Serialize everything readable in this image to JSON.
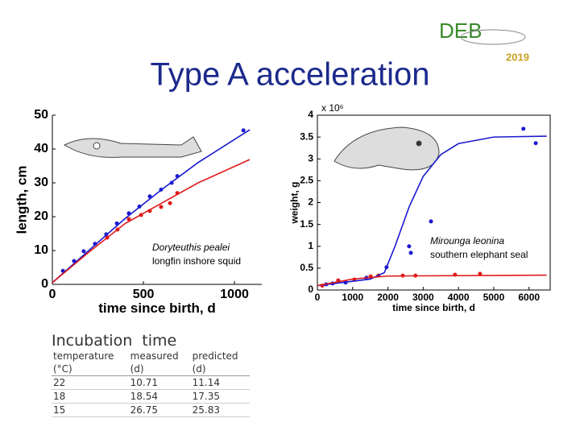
{
  "title": "Type A acceleration",
  "logo": {
    "text": "DEB",
    "year": "2019"
  },
  "chart_data": [
    {
      "type": "scatter-fit",
      "xlabel": "time since birth, d",
      "ylabel": "length, cm",
      "xlim": [
        0,
        1150
      ],
      "xticks": [
        0,
        500,
        1000
      ],
      "ylim": [
        0,
        50
      ],
      "yticks": [
        0,
        10,
        20,
        30,
        40,
        50
      ],
      "annotations": [
        "Doryteuthis pealei",
        "longfin inshore squid"
      ],
      "frame": false,
      "series": [
        {
          "color": "#1a1ad0",
          "mode": "markers",
          "x": [
            58,
            119,
            172,
            234,
            296,
            354,
            420,
            478,
            535,
            597,
            655,
            686,
            1049
          ],
          "values": [
            4,
            6.9,
            9.8,
            12,
            14.8,
            18,
            21,
            23,
            26,
            28,
            30,
            32,
            45.5
          ]
        },
        {
          "color": "#e01a1a",
          "mode": "markers",
          "x": [
            301,
            358,
            420,
            487,
            535,
            597,
            646,
            686
          ],
          "values": [
            13.8,
            16.2,
            19.3,
            20.5,
            21.7,
            22.9,
            24,
            27
          ]
        },
        {
          "color": "#1a1ad0",
          "mode": "line",
          "x": [
            0,
            200,
            400,
            600,
            800,
            1084
          ],
          "values": [
            0.5,
            10,
            19.5,
            28,
            36,
            45.7
          ]
        },
        {
          "color": "#e01a1a",
          "mode": "line",
          "x": [
            0,
            200,
            400,
            600,
            800,
            1084
          ],
          "values": [
            0.5,
            9.5,
            18,
            24,
            30,
            36.9
          ]
        }
      ]
    },
    {
      "type": "scatter-fit",
      "xlabel": "time since birth, d",
      "ylabel": "weight, g",
      "xlim": [
        0,
        6600
      ],
      "xticks": [
        0,
        1000,
        2000,
        3000,
        4000,
        5000,
        6000
      ],
      "ylim": [
        0,
        4
      ],
      "yticks": [
        0,
        0.5,
        1,
        1.5,
        2,
        2.5,
        3,
        3.5,
        4
      ],
      "annotations": [
        "Mirounga leonina",
        "southern elephant seal"
      ],
      "scale_note": "x 10⁶",
      "frame": true,
      "series": [
        {
          "color": "#1a1ad0",
          "mode": "markers",
          "x": [
            250,
            430,
            800,
            1390,
            1960,
            2600,
            2650,
            3220,
            5840,
            6190
          ],
          "values": [
            0.13,
            0.15,
            0.17,
            0.28,
            0.52,
            1.0,
            0.85,
            1.57,
            3.69,
            3.36
          ]
        },
        {
          "color": "#e01a1a",
          "mode": "markers",
          "x": [
            140,
            590,
            1050,
            1510,
            1730,
            2420,
            2780,
            3900,
            4610
          ],
          "values": [
            0.1,
            0.22,
            0.24,
            0.31,
            0.33,
            0.33,
            0.33,
            0.35,
            0.37
          ]
        },
        {
          "color": "#1a1ad0",
          "mode": "line",
          "x": [
            0,
            1500,
            1900,
            2200,
            2600,
            3000,
            3500,
            4000,
            5000,
            6500
          ],
          "values": [
            0.1,
            0.25,
            0.4,
            1.0,
            1.9,
            2.6,
            3.1,
            3.35,
            3.5,
            3.52
          ]
        },
        {
          "color": "#e01a1a",
          "mode": "line",
          "x": [
            0,
            1000,
            2000,
            6500
          ],
          "values": [
            0.1,
            0.25,
            0.32,
            0.34
          ]
        }
      ]
    }
  ],
  "table": {
    "title": "Incubation  time",
    "header": [
      [
        "temperature",
        "measured",
        "predicted"
      ],
      [
        "(°C)",
        "(d)",
        "(d)"
      ]
    ],
    "rows": [
      [
        "22",
        "10.71",
        "11.14"
      ],
      [
        "18",
        "18.54",
        "17.35"
      ],
      [
        "15",
        "26.75",
        "25.83"
      ]
    ]
  }
}
